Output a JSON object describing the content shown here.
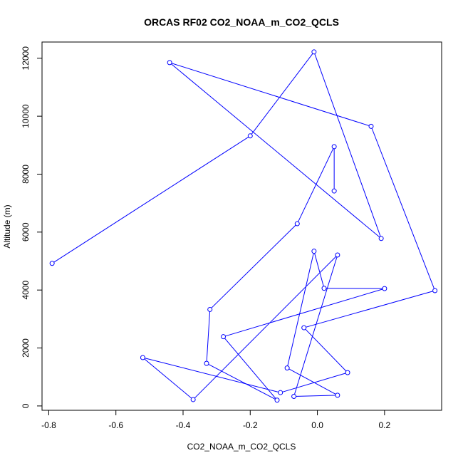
{
  "chart_data": {
    "type": "line",
    "title": "ORCAS RF02 CO2_NOAA_m_CO2_QCLS",
    "xlabel": "CO2_NOAA_m_CO2_QCLS",
    "ylabel": "Altitude (m)",
    "xlim": [
      -0.82,
      0.37
    ],
    "ylim": [
      -150,
      12560
    ],
    "xticks": [
      -0.8,
      -0.6,
      -0.4,
      -0.2,
      0.0,
      0.2
    ],
    "xtick_labels": [
      "-0.8",
      "-0.6",
      "-0.4",
      "-0.2",
      "0.0",
      "0.2"
    ],
    "yticks": [
      0,
      2000,
      4000,
      6000,
      8000,
      10000,
      12000
    ],
    "ytick_labels": [
      "0",
      "2000",
      "4000",
      "6000",
      "8000",
      "10000",
      "12000"
    ],
    "grid": false,
    "color": "#0000ff",
    "series": [
      {
        "marker": "open-circle",
        "points": [
          {
            "x": 0.05,
            "y": 7420
          },
          {
            "x": 0.05,
            "y": 8950
          },
          {
            "x": -0.06,
            "y": 6290
          },
          {
            "x": -0.32,
            "y": 3330
          },
          {
            "x": -0.33,
            "y": 1470
          },
          {
            "x": -0.12,
            "y": 200
          },
          {
            "x": -0.28,
            "y": 2390
          },
          {
            "x": 0.2,
            "y": 4050
          },
          {
            "x": 0.02,
            "y": 4060
          },
          {
            "x": -0.01,
            "y": 5340
          },
          {
            "x": -0.09,
            "y": 1310
          },
          {
            "x": 0.06,
            "y": 370
          },
          {
            "x": -0.07,
            "y": 330
          },
          {
            "x": 0.06,
            "y": 5210
          },
          {
            "x": -0.37,
            "y": 220
          },
          {
            "x": -0.52,
            "y": 1670
          },
          {
            "x": -0.11,
            "y": 460
          },
          {
            "x": 0.09,
            "y": 1150
          },
          {
            "x": -0.04,
            "y": 2700
          },
          {
            "x": 0.35,
            "y": 3980
          },
          {
            "x": 0.16,
            "y": 9650
          },
          {
            "x": -0.44,
            "y": 11850
          },
          {
            "x": 0.19,
            "y": 5780
          },
          {
            "x": -0.01,
            "y": 12220
          },
          {
            "x": -0.2,
            "y": 9320
          },
          {
            "x": -0.79,
            "y": 4920
          }
        ]
      }
    ]
  }
}
